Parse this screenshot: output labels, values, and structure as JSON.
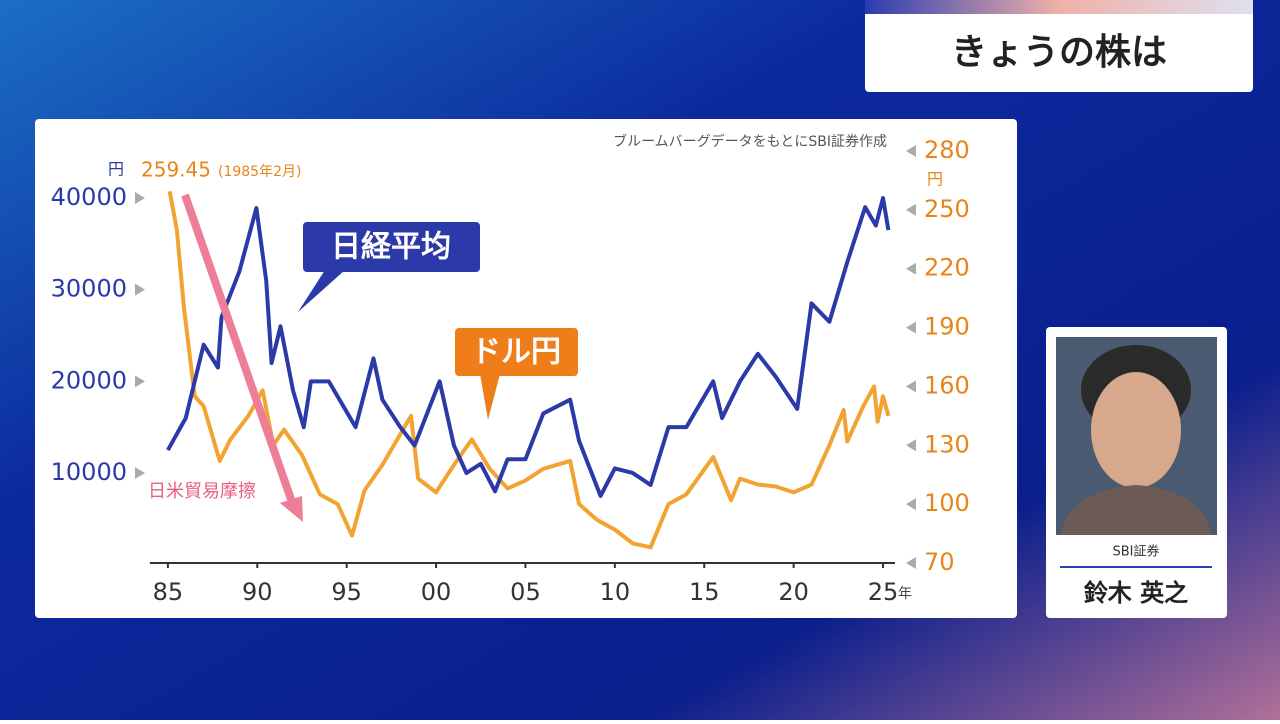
{
  "header": {
    "title": "きょうの株は"
  },
  "presenter": {
    "company": "SBI証券",
    "name": "鈴木 英之"
  },
  "chart_data": {
    "type": "line",
    "source": "ブルームバーグデータをもとにSBI証券作成",
    "y_unit": "円",
    "y2_unit": "円",
    "x_unit": "年",
    "annotations": {
      "peak_date": "(1985年2月)",
      "trade_friction": "日米貿易摩擦"
    },
    "xlim": [
      1984,
      2025.67
    ],
    "xticks": [
      {
        "value": 1985,
        "label": "85"
      },
      {
        "value": 1990,
        "label": "90"
      },
      {
        "value": 1995,
        "label": "95"
      },
      {
        "value": 2000,
        "label": "00"
      },
      {
        "value": 2005,
        "label": "05"
      },
      {
        "value": 2010,
        "label": "10"
      },
      {
        "value": 2015,
        "label": "15"
      },
      {
        "value": 2020,
        "label": "20"
      },
      {
        "value": 2025,
        "label": "25"
      }
    ],
    "ylim": [
      180,
      45130
    ],
    "yticks": [
      10000,
      20000,
      30000,
      40000
    ],
    "y2lim": [
      70,
      280
    ],
    "y2ticks": [
      70,
      100,
      130,
      160,
      190,
      220,
      250,
      280
    ],
    "series": [
      {
        "name": "日経平均",
        "color": "#2b3aa8",
        "x": [
          1985,
          1986,
          1987,
          1987.8,
          1988,
          1989,
          1989.95,
          1990.5,
          1990.8,
          1991.3,
          1992,
          1992.6,
          1993,
          1994,
          1995.5,
          1996.5,
          1997,
          1998,
          1998.8,
          2000.2,
          2001,
          2001.7,
          2002.5,
          2003.3,
          2004,
          2005,
          2006,
          2007.5,
          2008,
          2009.2,
          2010,
          2011,
          2012,
          2013,
          2014,
          2015.5,
          2016,
          2017,
          2018,
          2019,
          2020.2,
          2021,
          2022,
          2023,
          2024,
          2024.6,
          2025,
          2025.3
        ],
        "values": [
          12500,
          16000,
          24000,
          21500,
          27000,
          32000,
          38900,
          31000,
          22000,
          26000,
          19000,
          15000,
          20000,
          20000,
          15000,
          22500,
          18000,
          15000,
          13000,
          20000,
          13000,
          10000,
          11000,
          8000,
          11500,
          11500,
          16500,
          18000,
          13500,
          7500,
          10500,
          10000,
          8700,
          15000,
          15000,
          20000,
          16000,
          20000,
          23000,
          20500,
          17000,
          28500,
          26500,
          33000,
          39000,
          37000,
          40000,
          36500
        ]
      },
      {
        "name": "ドル円",
        "color": "#f2a432",
        "axis": "y2",
        "x": [
          1985.1,
          1985.5,
          1985.9,
          1986.5,
          1987,
          1987.9,
          1988.5,
          1989.5,
          1990.3,
          1990.9,
          1991.5,
          1992.5,
          1993.5,
          1994.5,
          1995.3,
          1996,
          1997,
          1998.6,
          1999,
          2000,
          2001,
          2002,
          2003,
          2004,
          2005,
          2006,
          2007.5,
          2008,
          2009,
          2010,
          2011,
          2012,
          2013,
          2014,
          2015.5,
          2016.5,
          2017,
          2018,
          2019,
          2020,
          2021,
          2022,
          2022.8,
          2023,
          2023.9,
          2024.5,
          2024.7,
          2025,
          2025.3
        ],
        "values": [
          259.45,
          240,
          200,
          155,
          150,
          122,
          133,
          145,
          158,
          130,
          138,
          125,
          105,
          100,
          84,
          107,
          120,
          145,
          113,
          106,
          120,
          133,
          118,
          108,
          112,
          118,
          122,
          100,
          92,
          87,
          80,
          78,
          100,
          105,
          124,
          102,
          113,
          110,
          109,
          106,
          110,
          130,
          148,
          132,
          150,
          160,
          142,
          155,
          145
        ]
      }
    ]
  }
}
